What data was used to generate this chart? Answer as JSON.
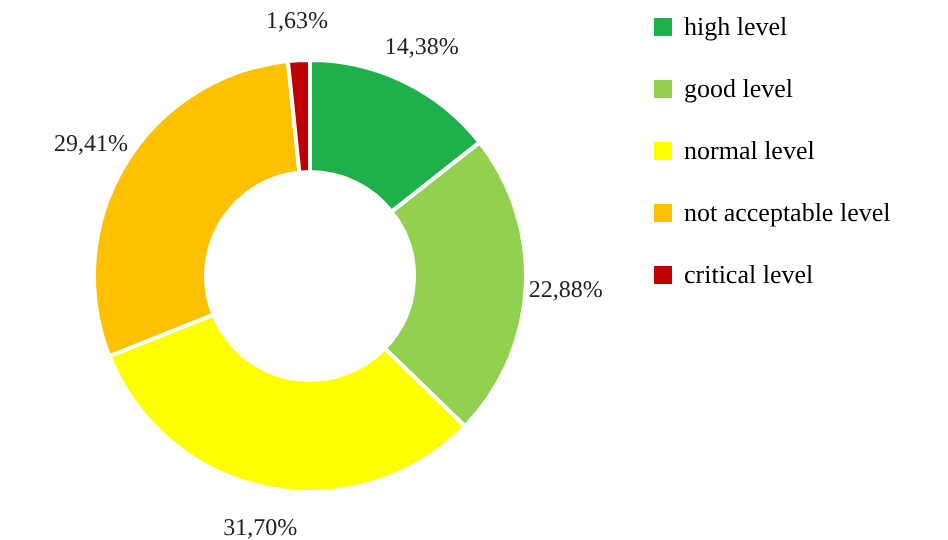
{
  "chart_data": {
    "type": "donut",
    "categories": [
      "high level",
      "good level",
      "normal level",
      "not acceptable level",
      "critical level"
    ],
    "values": [
      14.38,
      22.88,
      31.7,
      29.41,
      1.63
    ],
    "colors": [
      "#1fb04c",
      "#92d050",
      "#ffff00",
      "#ffc000",
      "#c00000"
    ],
    "value_labels": [
      "14,38%",
      "22,88%",
      "31,70%",
      "29,41%",
      "1,63%"
    ],
    "legend": "right"
  }
}
